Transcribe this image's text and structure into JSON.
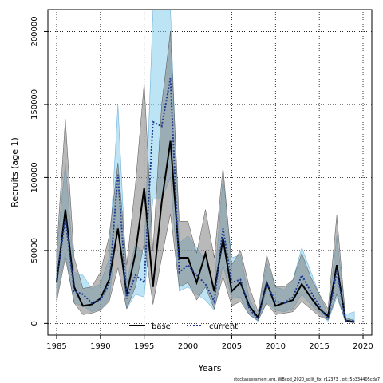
{
  "chart_data": {
    "type": "line",
    "xlabel": "Years",
    "ylabel": "Recruits (age 1)",
    "xlim": [
      1984,
      2021
    ],
    "ylim": [
      -8000,
      215000
    ],
    "x_ticks": [
      1985,
      1990,
      1995,
      2000,
      2005,
      2010,
      2015,
      2020
    ],
    "y_ticks": [
      0,
      50000,
      100000,
      150000,
      200000
    ],
    "y_tick_labels": [
      "0",
      "50000",
      "100000",
      "150000",
      "200000"
    ],
    "grid": true,
    "legend_position": "bottom-center",
    "footnote": "stockassessment.org, WBcod_2020_split_fix, r12373 , git: 5b334405cda7",
    "series": [
      {
        "name": "base",
        "color": "#000000",
        "band_color": "#808080",
        "line_style": "solid",
        "x": [
          1985,
          1986,
          1987,
          1988,
          1989,
          1990,
          1991,
          1992,
          1993,
          1994,
          1995,
          1996,
          1997,
          1998,
          1999,
          2000,
          2001,
          2002,
          2003,
          2004,
          2005,
          2006,
          2007,
          2008,
          2009,
          2010,
          2011,
          2012,
          2013,
          2014,
          2015,
          2016,
          2017,
          2018,
          2019
        ],
        "values": [
          28000,
          78000,
          25000,
          12000,
          13000,
          17000,
          30000,
          65000,
          20000,
          48000,
          93000,
          25000,
          83000,
          125000,
          45000,
          45000,
          28000,
          48000,
          22000,
          58000,
          22000,
          28000,
          12000,
          4000,
          28000,
          12000,
          14000,
          16000,
          27000,
          18000,
          10000,
          5000,
          40000,
          2000,
          1000
        ],
        "lower": [
          15000,
          45000,
          14000,
          6000,
          7000,
          9000,
          15000,
          38000,
          10000,
          25000,
          55000,
          13000,
          45000,
          75000,
          25000,
          28000,
          16000,
          25000,
          10000,
          32000,
          12000,
          15000,
          6000,
          2000,
          14000,
          6000,
          7000,
          8000,
          15000,
          10000,
          5000,
          2500,
          20000,
          1000,
          500
        ],
        "upper": [
          50000,
          140000,
          45000,
          24000,
          25000,
          35000,
          60000,
          110000,
          40000,
          95000,
          165000,
          50000,
          150000,
          200000,
          70000,
          70000,
          48000,
          78000,
          45000,
          107000,
          40000,
          50000,
          25000,
          8000,
          47000,
          25000,
          25000,
          30000,
          48000,
          32000,
          20000,
          10000,
          74000,
          4000,
          2000
        ]
      },
      {
        "name": "current",
        "color": "#1f3a93",
        "band_color": "#87ceeb",
        "line_style": "dotted",
        "x": [
          1985,
          1986,
          1987,
          1988,
          1989,
          1990,
          1991,
          1992,
          1993,
          1994,
          1995,
          1996,
          1997,
          1998,
          1999,
          2000,
          2001,
          2002,
          2003,
          2004,
          2005,
          2006,
          2007,
          2008,
          2009,
          2010,
          2011,
          2012,
          2013,
          2014,
          2015,
          2016,
          2017,
          2018,
          2019
        ],
        "values": [
          30000,
          72000,
          22000,
          20000,
          14000,
          16000,
          27000,
          102000,
          17000,
          33000,
          28000,
          138000,
          135000,
          168000,
          35000,
          40000,
          33000,
          27000,
          15000,
          65000,
          28000,
          30000,
          10000,
          3000,
          27000,
          15000,
          14000,
          18000,
          33000,
          22000,
          12000,
          3000,
          36000,
          2000,
          2000
        ],
        "lower": [
          18000,
          48000,
          14000,
          12000,
          8000,
          10000,
          16000,
          68000,
          10000,
          20000,
          18000,
          85000,
          85000,
          100000,
          22000,
          25000,
          20000,
          16000,
          9000,
          40000,
          17000,
          18000,
          6000,
          1500,
          15000,
          9000,
          8000,
          10000,
          20000,
          13000,
          7000,
          1500,
          18000,
          1000,
          1000
        ],
        "upper": [
          48000,
          110000,
          35000,
          33000,
          24000,
          27000,
          45000,
          150000,
          28000,
          55000,
          47000,
          215000,
          215000,
          215000,
          55000,
          60000,
          52000,
          43000,
          25000,
          100000,
          45000,
          47000,
          17000,
          6000,
          42000,
          25000,
          23000,
          30000,
          52000,
          36000,
          20000,
          6000,
          60000,
          6000,
          8000
        ]
      }
    ]
  }
}
